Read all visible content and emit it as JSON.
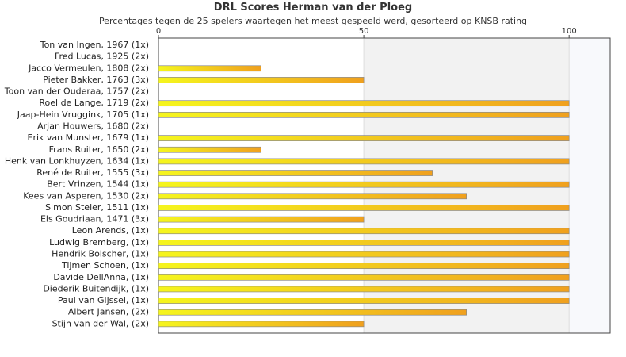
{
  "chart_data": {
    "type": "bar",
    "orientation": "horizontal",
    "title": "DRL Scores Herman van der Ploeg",
    "subtitle": "Percentages tegen de 25 spelers waartegen het meest gespeeld werd, gesorteerd op KNSB rating",
    "xlim": [
      0,
      110
    ],
    "xticks": [
      0,
      50,
      100
    ],
    "grid": true,
    "colors": {
      "bar_start": "#f5f51e",
      "bar_end": "#f0a01e",
      "bar_border": "#8a8a8a",
      "band": "#f2f2f2"
    },
    "categories": [
      "Ton van Ingen, 1967 (1x)",
      "Fred Lucas, 1925 (2x)",
      "Jacco Vermeulen, 1808 (2x)",
      "Pieter Bakker, 1763 (3x)",
      "Toon van der Ouderaa, 1757 (2x)",
      "Roel de Lange, 1719 (2x)",
      "Jaap-Hein Vruggink, 1705 (1x)",
      "Arjan Houwers, 1680 (2x)",
      "Erik van Munster, 1679 (1x)",
      "Frans Ruiter, 1650 (2x)",
      "Henk van Lonkhuyzen, 1634 (1x)",
      "René de Ruiter, 1555 (3x)",
      "Bert Vrinzen, 1544 (1x)",
      "Kees van Asperen, 1530 (2x)",
      "Simon Steier, 1511 (1x)",
      "Els Goudriaan, 1471 (3x)",
      "Leon Arends,  (1x)",
      "Ludwig Bremberg,  (1x)",
      "Hendrik Bolscher,  (1x)",
      "Tijmen Schoen,  (1x)",
      "Davide DellAnna,  (1x)",
      "Diederik Buitendijk,  (1x)",
      "Paul van Gijssel,  (1x)",
      "Albert Jansen,  (2x)",
      "Stijn van der Wal,  (2x)"
    ],
    "values": [
      0,
      0,
      25,
      50,
      0,
      100,
      100,
      0,
      100,
      25,
      100,
      66.7,
      100,
      75,
      100,
      50,
      100,
      100,
      100,
      100,
      100,
      100,
      100,
      75,
      50
    ]
  }
}
